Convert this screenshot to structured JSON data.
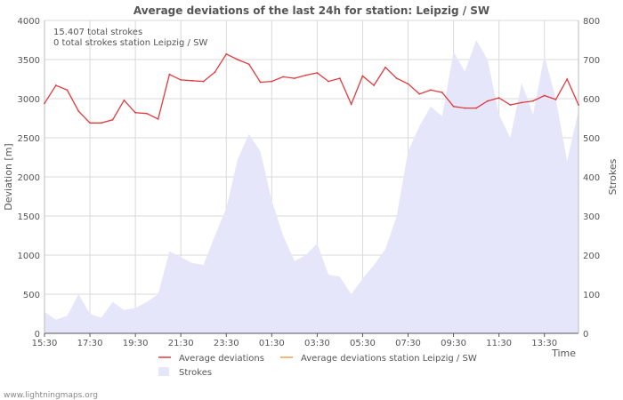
{
  "chart_data": {
    "type": "line",
    "title": "Average deviations of the last 24h for station: Leipzig / SW",
    "annotations": [
      "15.407 total strokes",
      "0 total strokes station Leipzig / SW"
    ],
    "xlabel": "Time",
    "ylabel_left": "Deviation  [m]",
    "ylabel_right": "Strokes",
    "ylim_left": [
      0,
      4000
    ],
    "ylim_right": [
      0,
      800
    ],
    "yticks_left": [
      "0",
      "500",
      "1000",
      "1500",
      "2000",
      "2500",
      "3000",
      "3500",
      "4000"
    ],
    "yticks_right": [
      "0",
      "100",
      "200",
      "300",
      "400",
      "500",
      "600",
      "700",
      "800"
    ],
    "xlim_hours": [
      0,
      23.5
    ],
    "x_ticks": [
      {
        "label": "15:30",
        "h": 0
      },
      {
        "label": "17:30",
        "h": 2
      },
      {
        "label": "19:30",
        "h": 4
      },
      {
        "label": "21:30",
        "h": 6
      },
      {
        "label": "23:30",
        "h": 8
      },
      {
        "label": "01:30",
        "h": 10
      },
      {
        "label": "03:30",
        "h": 12
      },
      {
        "label": "05:30",
        "h": 14
      },
      {
        "label": "07:30",
        "h": 16
      },
      {
        "label": "09:30",
        "h": 18
      },
      {
        "label": "11:30",
        "h": 20
      },
      {
        "label": "13:30",
        "h": 22
      }
    ],
    "series": [
      {
        "name": "Average deviations",
        "axis": "left",
        "color": "#e03a3e",
        "x": [
          0,
          0.5,
          1,
          1.5,
          2,
          2.5,
          3,
          3.5,
          4,
          4.5,
          5,
          5.5,
          6,
          6.5,
          7,
          7.5,
          8,
          8.5,
          9,
          9.5,
          10,
          10.5,
          11,
          11.5,
          12,
          12.5,
          13,
          13.5,
          14,
          14.5,
          15,
          15.5,
          16,
          16.5,
          17,
          17.5,
          18,
          18.5,
          19,
          19.5,
          20,
          20.5,
          21,
          21.5,
          22,
          22.5,
          23,
          23.5
        ],
        "values": [
          2940,
          3170,
          3110,
          2840,
          2690,
          2690,
          2730,
          2980,
          2820,
          2810,
          2740,
          3310,
          3240,
          3230,
          3220,
          3340,
          3570,
          3500,
          3440,
          3210,
          3220,
          3280,
          3260,
          3300,
          3330,
          3220,
          3260,
          2930,
          3290,
          3170,
          3400,
          3260,
          3190,
          3060,
          3110,
          3080,
          2900,
          2880,
          2880,
          2970,
          3010,
          2920,
          2950,
          2970,
          3040,
          2990,
          3250,
          2920
        ]
      },
      {
        "name": "Average deviations station Leipzig / SW",
        "axis": "left",
        "color": "#f0a050",
        "x": [],
        "values": []
      },
      {
        "name": "Strokes",
        "axis": "right",
        "type": "area",
        "color": "#e6e6fa",
        "x": [
          0,
          0.5,
          1,
          1.5,
          2,
          2.5,
          3,
          3.5,
          4,
          4.5,
          5,
          5.5,
          6,
          6.5,
          7,
          7.5,
          8,
          8.5,
          9,
          9.5,
          10,
          10.5,
          11,
          11.5,
          12,
          12.5,
          13,
          13.5,
          14,
          14.5,
          15,
          15.5,
          16,
          16.5,
          17,
          17.5,
          18,
          18.5,
          19,
          19.5,
          20,
          20.5,
          21,
          21.5,
          22,
          22.5,
          23,
          23.5
        ],
        "values": [
          55,
          35,
          45,
          100,
          50,
          40,
          80,
          60,
          65,
          80,
          100,
          210,
          195,
          180,
          175,
          250,
          320,
          445,
          510,
          465,
          340,
          250,
          185,
          200,
          230,
          150,
          145,
          100,
          140,
          175,
          215,
          300,
          465,
          530,
          580,
          555,
          720,
          670,
          750,
          700,
          560,
          500,
          640,
          560,
          710,
          600,
          440,
          570
        ]
      }
    ],
    "legend": {
      "position": "bottom",
      "entries": [
        {
          "label": "Average deviations",
          "color": "#e03a3e",
          "kind": "line"
        },
        {
          "label": "Average deviations station Leipzig / SW",
          "color": "#f0a050",
          "kind": "line"
        },
        {
          "label": "Strokes",
          "color": "#e6e6fa",
          "kind": "area"
        }
      ]
    }
  },
  "footer": {
    "credit": "www.lightningmaps.org"
  }
}
